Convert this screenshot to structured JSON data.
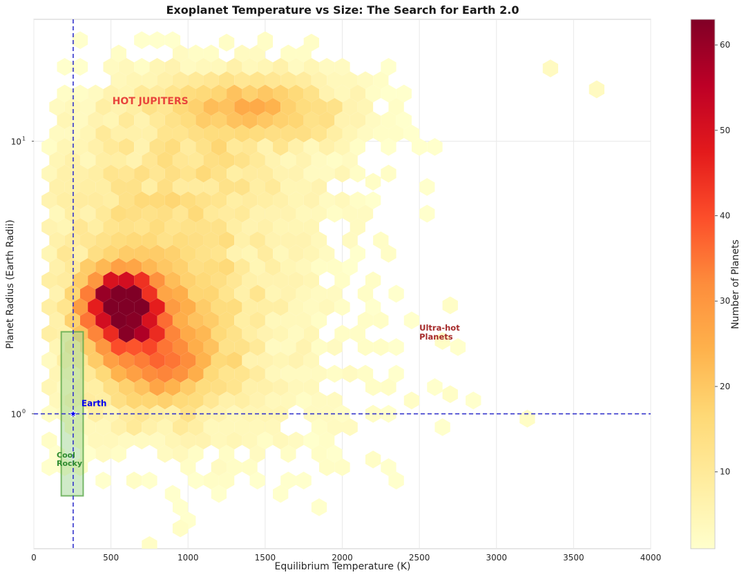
{
  "chart_data": {
    "type": "hexbin",
    "title": "Exoplanet Temperature vs Size: The Search for Earth 2.0",
    "xlabel": "Equilibrium Temperature (K)",
    "ylabel": "Planet Radius (Earth Radii)",
    "xlim": [
      0,
      4000
    ],
    "ylim": [
      0.32,
      28
    ],
    "yscale": "log",
    "x_ticks": [
      0,
      500,
      1000,
      1500,
      2000,
      2500,
      3000,
      3500,
      4000
    ],
    "x_tick_labels": [
      "0",
      "500",
      "1000",
      "1500",
      "2000",
      "2500",
      "3000",
      "3500",
      "4000"
    ],
    "y_ticks": [
      {
        "value": 10,
        "base": "10",
        "exp": "1"
      },
      {
        "value": 1,
        "base": "10",
        "exp": "0"
      }
    ],
    "grid": true,
    "colormap": "YlOrRd",
    "colorbar": {
      "label": "Number of Planets",
      "range": [
        1,
        63
      ],
      "ticks": [
        10,
        20,
        30,
        40,
        50,
        60
      ],
      "tick_labels": [
        "10",
        "20",
        "30",
        "40",
        "50",
        "60"
      ]
    },
    "reference_lines": {
      "earth_temperature": 255,
      "earth_radius": 1.0
    },
    "earth_marker": {
      "label": "Earth",
      "temperature": 255,
      "radius": 1.0
    },
    "habitable_box": {
      "label_line1": "Cool",
      "label_line2": "Rocky",
      "t_min": 200,
      "t_max": 320,
      "r_min": 0.5,
      "r_max": 2.0
    },
    "annotations": [
      {
        "text": "HOT JUPITERS",
        "x": 500,
        "y": 14,
        "color": "#e8453c"
      },
      {
        "text_line1": "Ultra-hot",
        "text_line2": "Planets",
        "x": 2500,
        "y": 1.95,
        "color": "#a52a2a"
      }
    ],
    "hex_grid": {
      "x_step": 100,
      "log_y_step": 0.0855,
      "cols": 42,
      "rows": 25
    },
    "clusters": [
      {
        "name": "warm-sub-neptunes",
        "temperature": 560,
        "radius": 2.5,
        "peak_count": 63
      },
      {
        "name": "super-earths",
        "temperature": 780,
        "radius": 1.6,
        "peak_count": 25
      },
      {
        "name": "hot-jupiters",
        "temperature": 1450,
        "radius": 14,
        "peak_count": 25
      }
    ],
    "hex_counts": [
      {
        "t": 1250,
        "r": 23.0,
        "count": 2
      },
      {
        "t": 1500,
        "r": 23.0,
        "count": 2
      },
      {
        "t": 1800,
        "r": 23.0,
        "count": 2
      },
      {
        "t": 3350,
        "r": 18.5,
        "count": 3
      },
      {
        "t": 3650,
        "r": 15.5,
        "count": 3
      },
      {
        "t": 2200,
        "r": 7.1,
        "count": 2
      },
      {
        "t": 2700,
        "r": 2.5,
        "count": 2
      },
      {
        "t": 2650,
        "r": 1.85,
        "count": 2
      },
      {
        "t": 2700,
        "r": 1.18,
        "count": 2
      },
      {
        "t": 3200,
        "r": 0.96,
        "count": 2
      },
      {
        "t": 2200,
        "r": 0.68,
        "count": 2
      },
      {
        "t": 950,
        "r": 0.38,
        "count": 2
      },
      {
        "t": 750,
        "r": 0.33,
        "count": 2
      }
    ]
  },
  "hex_markup_note": "",
  "colors": {
    "reference_line": "#3333cc",
    "earth": "#0000ee",
    "box_fill": "#a8d89a",
    "box_edge": "#5aa84a",
    "box_label": "#2e8b2e"
  }
}
